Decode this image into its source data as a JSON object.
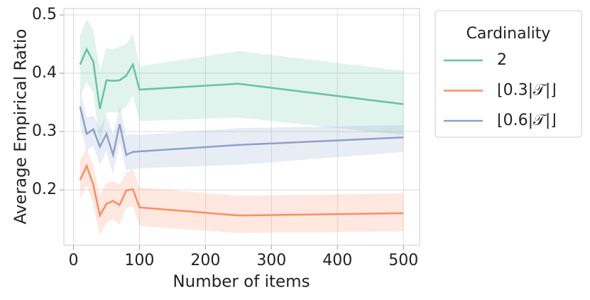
{
  "chart_data": {
    "type": "line",
    "xlabel": "Number of items",
    "ylabel": "Average Empirical Ratio",
    "legend_title": "Cardinality",
    "legend": "outside-right",
    "grid": true,
    "x": [
      10,
      20,
      30,
      40,
      50,
      60,
      70,
      80,
      90,
      100,
      250,
      500
    ],
    "xlim": [
      -14.5,
      524.5
    ],
    "xticks": [
      0,
      100,
      200,
      300,
      400,
      500
    ],
    "ylim": [
      0.105,
      0.511
    ],
    "yticks": [
      0.2,
      0.3,
      0.4,
      0.5
    ],
    "series": [
      {
        "name": "2",
        "color": "#66c2a5",
        "values": [
          0.415,
          0.441,
          0.42,
          0.339,
          0.388,
          0.387,
          0.388,
          0.396,
          0.415,
          0.372,
          0.382,
          0.347
        ],
        "upper": [
          0.465,
          0.493,
          0.474,
          0.404,
          0.443,
          0.44,
          0.446,
          0.45,
          0.467,
          0.412,
          0.438,
          0.404
        ],
        "lower": [
          0.361,
          0.385,
          0.367,
          0.278,
          0.333,
          0.333,
          0.333,
          0.343,
          0.361,
          0.318,
          0.324,
          0.294
        ]
      },
      {
        "name": "⌊0.3|𝒯|⌋",
        "color": "#fc8d62",
        "values": [
          0.217,
          0.241,
          0.209,
          0.156,
          0.176,
          0.181,
          0.174,
          0.199,
          0.201,
          0.17,
          0.156,
          0.16
        ],
        "upper": [
          0.251,
          0.272,
          0.241,
          0.19,
          0.211,
          0.215,
          0.209,
          0.229,
          0.235,
          0.204,
          0.19,
          0.194
        ],
        "lower": [
          0.184,
          0.209,
          0.174,
          0.123,
          0.144,
          0.15,
          0.14,
          0.17,
          0.172,
          0.138,
          0.126,
          0.129
        ]
      },
      {
        "name": "⌊0.6|𝒯|⌋",
        "color": "#8da0cb",
        "values": [
          0.343,
          0.296,
          0.304,
          0.274,
          0.296,
          0.26,
          0.313,
          0.26,
          0.265,
          0.266,
          0.277,
          0.29
        ],
        "upper": [
          0.373,
          0.324,
          0.327,
          0.306,
          0.327,
          0.294,
          0.343,
          0.294,
          0.296,
          0.294,
          0.306,
          0.311
        ],
        "lower": [
          0.312,
          0.267,
          0.276,
          0.243,
          0.267,
          0.227,
          0.282,
          0.233,
          0.235,
          0.237,
          0.243,
          0.265
        ]
      }
    ]
  }
}
